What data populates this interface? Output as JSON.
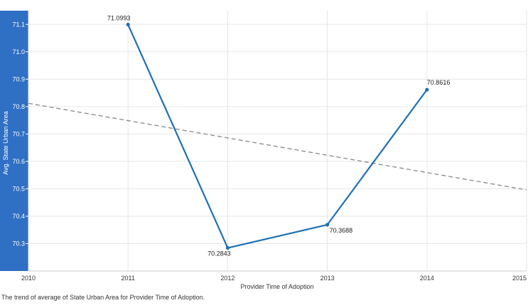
{
  "chart_data": {
    "type": "line",
    "title": "",
    "xlabel": "Provider Time of Adoption",
    "ylabel": "Avg. State Urban Area",
    "x_ticks": [
      "2010",
      "2011",
      "2012",
      "2013",
      "2014",
      "2015"
    ],
    "y_ticks": [
      "70.3",
      "70.4",
      "70.5",
      "70.6",
      "70.7",
      "70.8",
      "70.9",
      "71.0",
      "71.1"
    ],
    "xlim": [
      2010,
      2015
    ],
    "ylim": [
      70.2,
      71.15
    ],
    "grid": true,
    "series": [
      {
        "x": [
          2011,
          2012,
          2013,
          2014
        ],
        "values": [
          71.0993,
          70.2843,
          70.3688,
          70.8616
        ],
        "labels": [
          "71.0993",
          "70.2843",
          "70.3688",
          "70.8616"
        ],
        "color": "#1f6fb5"
      }
    ],
    "trend_line": {
      "x": [
        2010,
        2015
      ],
      "values": [
        70.812,
        70.496
      ],
      "color": "#888888",
      "style": "dashed"
    },
    "axis_panel_color": "#2f6fc4"
  },
  "caption": "The trend of average of State Urban Area for Provider Time of Adoption."
}
